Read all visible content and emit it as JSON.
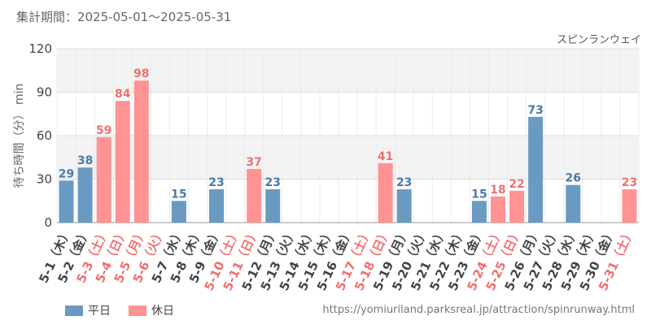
{
  "header": {
    "period": "集計期間：2025-05-01～2025-05-31",
    "attraction": "スピンランウェイ"
  },
  "legend": {
    "weekday": "平日",
    "holiday": "休日"
  },
  "source": "https://yomiuriland.parksreal.jp/attraction/spinrunway.html",
  "colors": {
    "weekday": "#6a9ac2",
    "holiday": "#ff9293",
    "weekday_text": "#4a7aa8",
    "holiday_text": "#f07070",
    "band": "#f3f3f3",
    "grid": "#dddddd"
  },
  "chart_data": {
    "type": "bar",
    "ylabel": "待ち時間（分） min",
    "ylim": [
      0,
      120
    ],
    "yticks": [
      0,
      30,
      60,
      90,
      120
    ],
    "categories": [
      "5-1（木）",
      "5-2（金）",
      "5-3（土）",
      "5-4（日）",
      "5-5（月）",
      "5-6（火）",
      "5-7（水）",
      "5-8（木）",
      "5-9（金）",
      "5-10（土）",
      "5-11（日）",
      "5-12（月）",
      "5-13（火）",
      "5-14（水）",
      "5-15（木）",
      "5-16（金）",
      "5-17（土）",
      "5-18（日）",
      "5-19（月）",
      "5-20（火）",
      "5-21（水）",
      "5-22（木）",
      "5-23（金）",
      "5-24（土）",
      "5-25（日）",
      "5-26（月）",
      "5-27（火）",
      "5-28（水）",
      "5-29（木）",
      "5-30（金）",
      "5-31（土）"
    ],
    "day_type": [
      "weekday",
      "weekday",
      "holiday",
      "holiday",
      "holiday",
      "holiday",
      "weekday",
      "weekday",
      "weekday",
      "holiday",
      "holiday",
      "weekday",
      "weekday",
      "weekday",
      "weekday",
      "weekday",
      "holiday",
      "holiday",
      "weekday",
      "weekday",
      "weekday",
      "weekday",
      "weekday",
      "holiday",
      "holiday",
      "weekday",
      "weekday",
      "weekday",
      "weekday",
      "weekday",
      "holiday"
    ],
    "values": [
      29,
      38,
      59,
      84,
      98,
      null,
      15,
      null,
      23,
      null,
      37,
      23,
      null,
      null,
      null,
      null,
      null,
      41,
      23,
      null,
      null,
      null,
      15,
      18,
      22,
      73,
      null,
      26,
      null,
      null,
      23
    ]
  }
}
